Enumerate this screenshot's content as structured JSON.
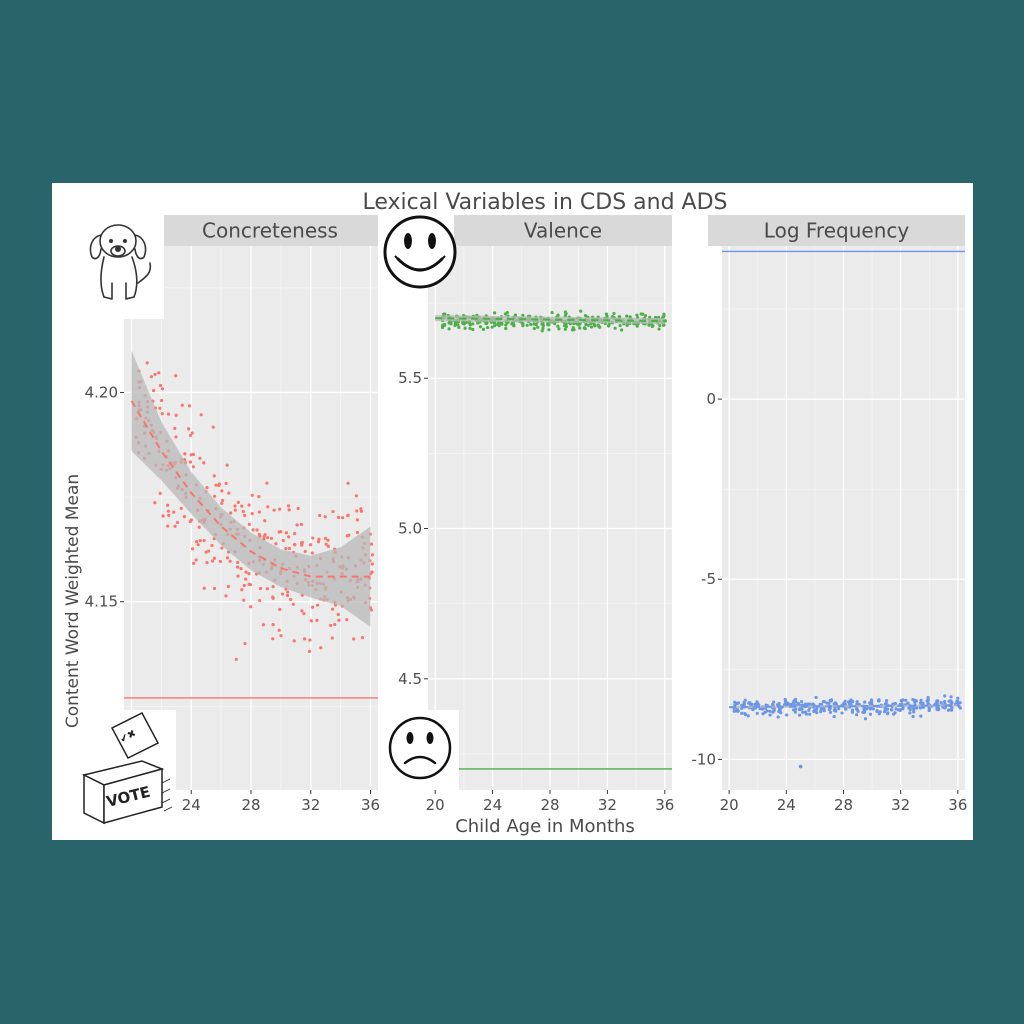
{
  "chart_data": {
    "title": "Lexical Variables in CDS and ADS",
    "xlabel": "Child Age in Months",
    "ylabel": "Content Word Weighted Mean",
    "panels": [
      {
        "name": "Concreteness",
        "type": "scatter",
        "color": "#f8766d",
        "xlim": [
          19.5,
          36.5
        ],
        "ylim": [
          4.105,
          4.235
        ],
        "xticks": [
          24,
          28,
          32,
          36
        ],
        "yticks": [
          4.15,
          4.2
        ],
        "ytick_labels": [
          "4.15",
          "4.20"
        ],
        "reference_line": 4.127,
        "smooth": {
          "x": [
            20,
            22,
            24,
            26,
            28,
            30,
            32,
            34,
            36
          ],
          "y": [
            4.198,
            4.186,
            4.176,
            4.168,
            4.162,
            4.158,
            4.156,
            4.156,
            4.156
          ],
          "se": [
            0.012,
            0.007,
            0.005,
            0.0045,
            0.0045,
            0.0045,
            0.005,
            0.007,
            0.012
          ]
        },
        "points_trend": {
          "x": [
            20,
            24,
            28,
            32,
            36
          ],
          "y": [
            4.198,
            4.176,
            4.162,
            4.156,
            4.156
          ]
        },
        "points_spread": 0.019,
        "points_per_month": 24,
        "points_x_range": [
          20.5,
          36
        ]
      },
      {
        "name": "Valence",
        "type": "scatter",
        "color": "#4daf4a",
        "xlim": [
          19.5,
          36.5
        ],
        "ylim": [
          4.13,
          5.94
        ],
        "xticks": [
          20,
          24,
          28,
          32,
          36
        ],
        "yticks": [
          4.5,
          5.0,
          5.5
        ],
        "ytick_labels": [
          "4.5",
          "5.0",
          "5.5"
        ],
        "reference_line": 4.2,
        "smooth": {
          "x": [
            20,
            36
          ],
          "y": [
            5.7,
            5.69
          ],
          "se": [
            0.01,
            0.01
          ]
        },
        "points_trend": {
          "x": [
            20,
            36
          ],
          "y": [
            5.69,
            5.69
          ]
        },
        "points_spread": 0.025,
        "points_per_month": 22,
        "points_x_range": [
          20.5,
          36
        ]
      },
      {
        "name": "Log Frequency",
        "type": "scatter",
        "color": "#6b95e8",
        "xlim": [
          19.5,
          36.5
        ],
        "ylim": [
          -10.85,
          4.25
        ],
        "xticks": [
          20,
          24,
          28,
          32,
          36
        ],
        "yticks": [
          -10,
          -5,
          0
        ],
        "ytick_labels": [
          "-10",
          "-5",
          "0"
        ],
        "reference_line": 4.1,
        "smooth": {
          "x": [
            20,
            36
          ],
          "y": [
            -8.55,
            -8.5
          ],
          "se": [
            0.03,
            0.03
          ]
        },
        "points_trend": {
          "x": [
            20,
            36
          ],
          "y": [
            -8.55,
            -8.5
          ]
        },
        "points_spread": 0.22,
        "points_per_month": 22,
        "points_x_range": [
          20.5,
          36
        ],
        "outlier": {
          "x": 25,
          "y": -10.2
        }
      }
    ]
  },
  "icons": {
    "dog": "dog-icon",
    "happy": "smiley-happy-icon",
    "sad": "smiley-sad-icon",
    "vote": "ballot-box-icon",
    "vote_text": "VOTE",
    "ballot_text": "✔✖"
  },
  "colors": {
    "background": "#2a646b",
    "panel_bg": "#ebebeb",
    "strip_bg": "#d9d9d9",
    "smooth_band": "#b8b8b8"
  }
}
